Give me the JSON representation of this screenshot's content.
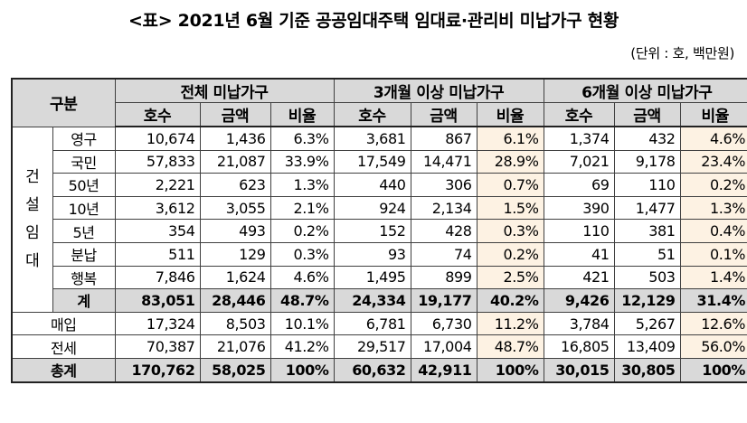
{
  "title": "<표> 2021년 6월 기준 공공임대주택 임대료·관리비 미납가구 현황",
  "unit": "(단위 : 호, 백만원)",
  "header": {
    "gubun": "구분",
    "groups": [
      "전체 미납가구",
      "3개월 이상 미납가구",
      "6개월 이상 미납가구"
    ],
    "subs": [
      "호수",
      "금액",
      "비율",
      "호수",
      "금액",
      "비율",
      "호수",
      "금액",
      "비율"
    ]
  },
  "construction_group": "건\n설\n임\n대",
  "rows": [
    {
      "label": "영구",
      "cells": [
        "10,674",
        "1,436",
        "6.3%",
        "3,681",
        "867",
        "6.1%",
        "1,374",
        "432",
        "4.6%"
      ]
    },
    {
      "label": "국민",
      "cells": [
        "57,833",
        "21,087",
        "33.9%",
        "17,549",
        "14,471",
        "28.9%",
        "7,021",
        "9,178",
        "23.4%"
      ]
    },
    {
      "label": "50년",
      "cells": [
        "2,221",
        "623",
        "1.3%",
        "440",
        "306",
        "0.7%",
        "69",
        "110",
        "0.2%"
      ]
    },
    {
      "label": "10년",
      "cells": [
        "3,612",
        "3,055",
        "2.1%",
        "924",
        "2,134",
        "1.5%",
        "390",
        "1,477",
        "1.3%"
      ]
    },
    {
      "label": "5년",
      "cells": [
        "354",
        "493",
        "0.2%",
        "152",
        "428",
        "0.3%",
        "110",
        "381",
        "0.4%"
      ]
    },
    {
      "label": "분납",
      "cells": [
        "511",
        "129",
        "0.3%",
        "93",
        "74",
        "0.2%",
        "41",
        "51",
        "0.1%"
      ]
    },
    {
      "label": "행복",
      "cells": [
        "7,846",
        "1,624",
        "4.6%",
        "1,495",
        "899",
        "2.5%",
        "421",
        "503",
        "1.4%"
      ]
    }
  ],
  "subtotal": {
    "label": "계",
    "cells": [
      "83,051",
      "28,446",
      "48.7%",
      "24,334",
      "19,177",
      "40.2%",
      "9,426",
      "12,129",
      "31.4%"
    ]
  },
  "other_rows": [
    {
      "label": "매입",
      "cells": [
        "17,324",
        "8,503",
        "10.1%",
        "6,781",
        "6,730",
        "11.2%",
        "3,784",
        "5,267",
        "12.6%"
      ]
    },
    {
      "label": "전세",
      "cells": [
        "70,387",
        "21,076",
        "41.2%",
        "29,517",
        "17,004",
        "48.7%",
        "16,805",
        "13,409",
        "56.0%"
      ]
    }
  ],
  "total": {
    "label": "총계",
    "cells": [
      "170,762",
      "58,025",
      "100%",
      "60,632",
      "42,911",
      "100%",
      "30,015",
      "30,805",
      "100%"
    ]
  },
  "colors": {
    "header_bg": "#d9d9d9",
    "highlight_bg": "#fdf2e3"
  }
}
